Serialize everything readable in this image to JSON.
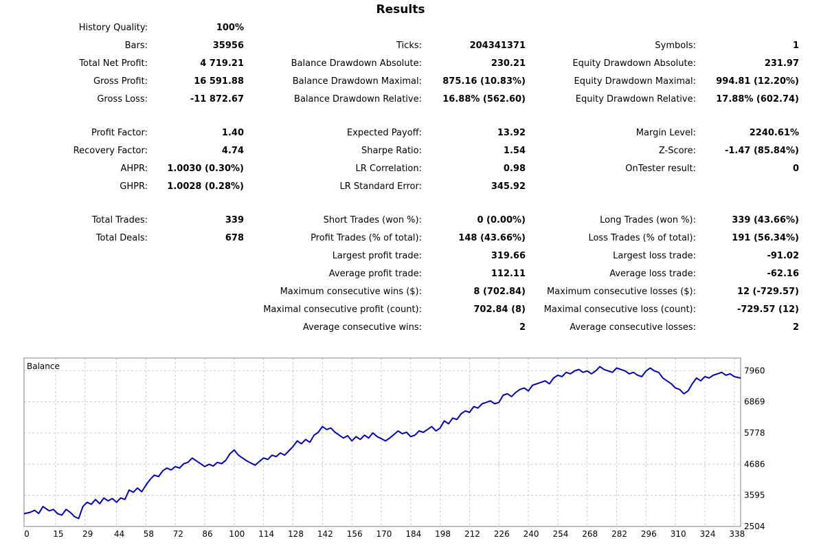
{
  "report": {
    "title": "Results",
    "columns": [
      [
        [
          {
            "label": "History Quality:",
            "value": "100%"
          },
          {
            "label": "Bars:",
            "value": "35956"
          },
          {
            "label": "Total Net Profit:",
            "value": "4 719.21"
          },
          {
            "label": "Gross Profit:",
            "value": "16 591.88"
          },
          {
            "label": "Gross Loss:",
            "value": "-11 872.67"
          }
        ],
        [
          {
            "label": "Profit Factor:",
            "value": "1.40"
          },
          {
            "label": "Recovery Factor:",
            "value": "4.74"
          },
          {
            "label": "AHPR:",
            "value": "1.0030 (0.30%)"
          },
          {
            "label": "GHPR:",
            "value": "1.0028 (0.28%)"
          }
        ],
        [
          {
            "label": "Total Trades:",
            "value": "339"
          },
          {
            "label": "Total Deals:",
            "value": "678"
          }
        ]
      ],
      [
        [
          null,
          {
            "label": "Ticks:",
            "value": "204341371"
          },
          {
            "label": "Balance Drawdown Absolute:",
            "value": "230.21"
          },
          {
            "label": "Balance Drawdown Maximal:",
            "value": "875.16 (10.83%)"
          },
          {
            "label": "Balance Drawdown Relative:",
            "value": "16.88% (562.60)"
          }
        ],
        [
          {
            "label": "Expected Payoff:",
            "value": "13.92"
          },
          {
            "label": "Sharpe Ratio:",
            "value": "1.54"
          },
          {
            "label": "LR Correlation:",
            "value": "0.98"
          },
          {
            "label": "LR Standard Error:",
            "value": "345.92"
          }
        ],
        [
          {
            "label": "Short Trades (won %):",
            "value": "0 (0.00%)"
          },
          {
            "label": "Profit Trades (% of total):",
            "value": "148 (43.66%)"
          },
          {
            "label": "Largest profit trade:",
            "value": "319.66"
          },
          {
            "label": "Average profit trade:",
            "value": "112.11"
          },
          {
            "label": "Maximum consecutive wins ($):",
            "value": "8 (702.84)"
          },
          {
            "label": "Maximal consecutive profit (count):",
            "value": "702.84 (8)"
          },
          {
            "label": "Average consecutive wins:",
            "value": "2"
          }
        ]
      ],
      [
        [
          null,
          {
            "label": "Symbols:",
            "value": "1"
          },
          {
            "label": "Equity Drawdown Absolute:",
            "value": "231.97"
          },
          {
            "label": "Equity Drawdown Maximal:",
            "value": "994.81 (12.20%)"
          },
          {
            "label": "Equity Drawdown Relative:",
            "value": "17.88% (602.74)"
          }
        ],
        [
          {
            "label": "Margin Level:",
            "value": "2240.61%"
          },
          {
            "label": "Z-Score:",
            "value": "-1.47 (85.84%)"
          },
          {
            "label": "OnTester result:",
            "value": "0"
          }
        ],
        [
          {
            "label": "Long Trades (won %):",
            "value": "339 (43.66%)"
          },
          {
            "label": "Loss Trades (% of total):",
            "value": "191 (56.34%)"
          },
          {
            "label": "Largest loss trade:",
            "value": "-91.02"
          },
          {
            "label": "Average loss trade:",
            "value": "-62.16"
          },
          {
            "label": "Maximum consecutive losses ($):",
            "value": "12 (-729.57)"
          },
          {
            "label": "Maximal consecutive loss (count):",
            "value": "-729.57 (12)"
          },
          {
            "label": "Average consecutive losses:",
            "value": "2"
          }
        ]
      ]
    ]
  },
  "chart_data": {
    "type": "line",
    "legend": "Balance",
    "x_ticks": [
      0,
      15,
      29,
      44,
      58,
      72,
      86,
      100,
      114,
      128,
      142,
      156,
      170,
      184,
      198,
      212,
      226,
      240,
      254,
      268,
      282,
      296,
      310,
      324,
      338
    ],
    "y_ticks": [
      2504,
      3595,
      4686,
      5778,
      6869,
      7960
    ],
    "xlim": [
      0,
      341
    ],
    "ylim": [
      2504,
      8400
    ],
    "grid": true,
    "colors": {
      "line": "#0000aa",
      "grid": "#c8c8c8",
      "frame": "#808080"
    },
    "series": [
      {
        "x": [
          0,
          3,
          5,
          7,
          9,
          12,
          14,
          16,
          18,
          20,
          22,
          24,
          26,
          28,
          30,
          32,
          34,
          36,
          38,
          40,
          42,
          44,
          46,
          48,
          50,
          52,
          54,
          56,
          58,
          60,
          62,
          64,
          66,
          68,
          70,
          72,
          74,
          76,
          78,
          80,
          82,
          84,
          86,
          88,
          90,
          92,
          94,
          96,
          98,
          100,
          102,
          104,
          106,
          108,
          110,
          112,
          114,
          116,
          118,
          120,
          122,
          124,
          126,
          128,
          130,
          132,
          134,
          136,
          138,
          140,
          142,
          144,
          146,
          148,
          150,
          152,
          154,
          156,
          158,
          160,
          162,
          164,
          166,
          168,
          170,
          172,
          174,
          176,
          178,
          180,
          182,
          184,
          186,
          188,
          190,
          192,
          194,
          196,
          198,
          200,
          202,
          204,
          206,
          208,
          210,
          212,
          214,
          216,
          218,
          220,
          222,
          224,
          226,
          228,
          230,
          232,
          234,
          236,
          238,
          240,
          242,
          244,
          246,
          248,
          250,
          252,
          254,
          256,
          258,
          260,
          262,
          264,
          266,
          268,
          270,
          272,
          274,
          276,
          278,
          280,
          282,
          284,
          286,
          288,
          290,
          292,
          294,
          296,
          298,
          300,
          302,
          304,
          306,
          308,
          310,
          312,
          314,
          316,
          318,
          320,
          322,
          324,
          326,
          328,
          330,
          332,
          334,
          336,
          338,
          341
        ],
        "y": [
          2950,
          3000,
          3070,
          2960,
          3200,
          3050,
          3100,
          2950,
          2900,
          3100,
          3000,
          2850,
          2780,
          3200,
          3350,
          3280,
          3450,
          3300,
          3500,
          3400,
          3480,
          3350,
          3500,
          3450,
          3780,
          3700,
          3850,
          3720,
          3950,
          4150,
          4300,
          4250,
          4450,
          4550,
          4480,
          4600,
          4550,
          4700,
          4750,
          4900,
          4800,
          4700,
          4600,
          4680,
          4620,
          4750,
          4700,
          4820,
          5050,
          5180,
          5000,
          4900,
          4800,
          4720,
          4650,
          4780,
          4900,
          4850,
          5000,
          4950,
          5080,
          5000,
          5150,
          5300,
          5500,
          5400,
          5550,
          5450,
          5700,
          5800,
          6000,
          5900,
          5950,
          5800,
          5700,
          5600,
          5680,
          5500,
          5650,
          5550,
          5700,
          5600,
          5780,
          5650,
          5580,
          5500,
          5600,
          5720,
          5850,
          5750,
          5800,
          5650,
          5700,
          5850,
          5800,
          5900,
          6000,
          5850,
          5950,
          6200,
          6100,
          6300,
          6250,
          6450,
          6550,
          6500,
          6700,
          6650,
          6800,
          6850,
          6900,
          6800,
          6850,
          7100,
          7150,
          7050,
          7200,
          7300,
          7350,
          7250,
          7450,
          7500,
          7550,
          7600,
          7500,
          7700,
          7800,
          7750,
          7900,
          7850,
          7950,
          8000,
          7900,
          7950,
          7850,
          7950,
          8100,
          8000,
          7950,
          7900,
          8050,
          8000,
          7950,
          7850,
          7900,
          7800,
          7750,
          7950,
          8050,
          7950,
          7900,
          7700,
          7600,
          7500,
          7350,
          7300,
          7150,
          7250,
          7500,
          7700,
          7600,
          7750,
          7700,
          7800,
          7850,
          7900,
          7800,
          7850,
          7750,
          7700
        ]
      }
    ]
  }
}
